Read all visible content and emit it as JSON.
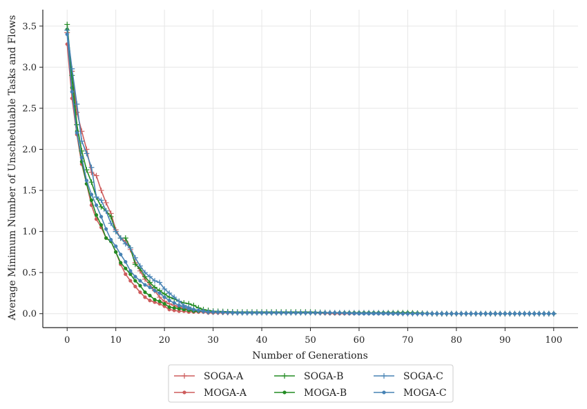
{
  "chart_data": {
    "type": "line",
    "title": "",
    "xlabel": "Number of Generations",
    "ylabel": "Average Minimum Number of Unschedulable Tasks and Flows",
    "xlim": [
      -5,
      105
    ],
    "ylim": [
      -0.17,
      3.7
    ],
    "xticks": [
      0,
      10,
      20,
      30,
      40,
      50,
      60,
      70,
      80,
      90,
      100
    ],
    "yticks": [
      0.0,
      0.5,
      1.0,
      1.5,
      2.0,
      2.5,
      3.0,
      3.5
    ],
    "ytick_labels": [
      "0.0",
      "0.5",
      "1.0",
      "1.5",
      "2.0",
      "2.5",
      "3.0",
      "3.5"
    ],
    "grid": true,
    "legend": {
      "placement": "bottom-center",
      "columns": 3
    },
    "series": [
      {
        "name": "SOGA-A",
        "color": "#cd5c5c",
        "marker": "plus",
        "x": [
          0,
          1,
          2,
          3,
          4,
          5,
          6,
          7,
          8,
          9,
          10,
          11,
          12,
          13,
          14,
          15,
          16,
          17,
          18,
          19,
          20,
          21,
          22,
          23,
          24,
          25,
          26,
          27,
          28,
          29,
          30,
          35,
          40,
          45,
          50,
          55,
          60,
          65,
          70,
          75,
          80,
          85,
          90,
          95,
          100
        ],
        "y": [
          3.42,
          2.95,
          2.45,
          2.22,
          2.0,
          1.72,
          1.68,
          1.5,
          1.35,
          1.22,
          1.02,
          0.92,
          0.88,
          0.78,
          0.62,
          0.52,
          0.42,
          0.35,
          0.28,
          0.2,
          0.15,
          0.12,
          0.1,
          0.08,
          0.06,
          0.05,
          0.04,
          0.03,
          0.03,
          0.02,
          0.02,
          0.01,
          0.01,
          0.01,
          0.01,
          0.01,
          0.01,
          0.01,
          0.01,
          0.0,
          0.0,
          0.0,
          0.0,
          0.0,
          0.0
        ]
      },
      {
        "name": "MOGA-A",
        "color": "#cd5c5c",
        "marker": "dot",
        "x": [
          0,
          1,
          2,
          3,
          4,
          5,
          6,
          7,
          8,
          9,
          10,
          11,
          12,
          13,
          14,
          15,
          16,
          17,
          18,
          19,
          20,
          21,
          22,
          23,
          24,
          25,
          26,
          27,
          28,
          29,
          30,
          35,
          40,
          45,
          50,
          55,
          60,
          65,
          70,
          75,
          80,
          85,
          90,
          95,
          100
        ],
        "y": [
          3.28,
          2.62,
          2.18,
          1.82,
          1.58,
          1.32,
          1.15,
          1.05,
          0.92,
          0.88,
          0.75,
          0.6,
          0.48,
          0.4,
          0.33,
          0.26,
          0.2,
          0.16,
          0.14,
          0.12,
          0.09,
          0.05,
          0.04,
          0.03,
          0.03,
          0.02,
          0.02,
          0.02,
          0.02,
          0.01,
          0.01,
          0.01,
          0.01,
          0.01,
          0.01,
          0.0,
          0.0,
          0.0,
          0.0,
          0.0,
          0.0,
          0.0,
          0.0,
          0.0,
          0.0
        ]
      },
      {
        "name": "SOGA-B",
        "color": "#228b22",
        "marker": "plus",
        "x": [
          0,
          1,
          2,
          3,
          4,
          5,
          6,
          7,
          8,
          9,
          10,
          11,
          12,
          13,
          14,
          15,
          16,
          17,
          18,
          19,
          20,
          21,
          22,
          23,
          24,
          25,
          26,
          27,
          28,
          29,
          30,
          35,
          40,
          45,
          50,
          55,
          60,
          65,
          70,
          75,
          80,
          85,
          90,
          95,
          100
        ],
        "y": [
          3.52,
          2.9,
          2.3,
          1.98,
          1.75,
          1.6,
          1.42,
          1.3,
          1.25,
          1.18,
          1.0,
          0.92,
          0.92,
          0.8,
          0.6,
          0.55,
          0.45,
          0.38,
          0.32,
          0.28,
          0.24,
          0.2,
          0.18,
          0.15,
          0.13,
          0.12,
          0.1,
          0.07,
          0.05,
          0.04,
          0.03,
          0.02,
          0.02,
          0.02,
          0.02,
          0.01,
          0.01,
          0.01,
          0.01,
          0.0,
          0.0,
          0.0,
          0.0,
          0.0,
          0.0
        ]
      },
      {
        "name": "MOGA-B",
        "color": "#228b22",
        "marker": "dot",
        "x": [
          0,
          1,
          2,
          3,
          4,
          5,
          6,
          7,
          8,
          9,
          10,
          11,
          12,
          13,
          14,
          15,
          16,
          17,
          18,
          19,
          20,
          21,
          22,
          23,
          24,
          25,
          26,
          27,
          28,
          29,
          30,
          35,
          40,
          45,
          50,
          55,
          60,
          65,
          70,
          75,
          80,
          85,
          90,
          95,
          100
        ],
        "y": [
          3.46,
          2.75,
          2.22,
          1.85,
          1.58,
          1.38,
          1.2,
          1.08,
          0.92,
          0.88,
          0.75,
          0.62,
          0.55,
          0.48,
          0.4,
          0.34,
          0.26,
          0.22,
          0.17,
          0.15,
          0.12,
          0.08,
          0.07,
          0.06,
          0.05,
          0.04,
          0.03,
          0.03,
          0.03,
          0.02,
          0.02,
          0.01,
          0.01,
          0.01,
          0.01,
          0.01,
          0.01,
          0.01,
          0.01,
          0.0,
          0.0,
          0.0,
          0.0,
          0.0,
          0.0
        ]
      },
      {
        "name": "SOGA-C",
        "color": "#4682b4",
        "marker": "plus",
        "x": [
          0,
          1,
          2,
          3,
          4,
          5,
          6,
          7,
          8,
          9,
          10,
          11,
          12,
          13,
          14,
          15,
          16,
          17,
          18,
          19,
          20,
          21,
          22,
          23,
          24,
          25,
          26,
          27,
          28,
          29,
          30,
          35,
          40,
          45,
          50,
          55,
          60,
          65,
          70,
          75,
          80,
          85,
          90,
          95,
          100
        ],
        "y": [
          3.45,
          2.98,
          2.55,
          2.1,
          1.95,
          1.78,
          1.42,
          1.38,
          1.25,
          1.1,
          1.0,
          0.92,
          0.85,
          0.8,
          0.68,
          0.58,
          0.5,
          0.45,
          0.4,
          0.38,
          0.3,
          0.25,
          0.2,
          0.15,
          0.1,
          0.08,
          0.05,
          0.04,
          0.03,
          0.02,
          0.02,
          0.01,
          0.01,
          0.01,
          0.01,
          0.01,
          0.01,
          0.01,
          0.0,
          0.0,
          0.0,
          0.0,
          0.0,
          0.0,
          0.0
        ]
      },
      {
        "name": "MOGA-C",
        "color": "#4682b4",
        "marker": "dot",
        "x": [
          0,
          1,
          2,
          3,
          4,
          5,
          6,
          7,
          8,
          9,
          10,
          11,
          12,
          13,
          14,
          15,
          16,
          17,
          18,
          19,
          20,
          21,
          22,
          23,
          24,
          25,
          26,
          27,
          28,
          29,
          30,
          35,
          40,
          45,
          50,
          55,
          60,
          65,
          70,
          75,
          80,
          85,
          90,
          95,
          100
        ],
        "y": [
          3.4,
          2.7,
          2.2,
          1.9,
          1.62,
          1.45,
          1.32,
          1.18,
          1.03,
          0.9,
          0.82,
          0.72,
          0.63,
          0.52,
          0.45,
          0.4,
          0.35,
          0.32,
          0.28,
          0.25,
          0.2,
          0.16,
          0.13,
          0.1,
          0.08,
          0.06,
          0.05,
          0.04,
          0.03,
          0.02,
          0.02,
          0.01,
          0.01,
          0.01,
          0.01,
          0.01,
          0.0,
          0.0,
          0.0,
          0.0,
          0.0,
          0.0,
          0.0,
          0.0,
          0.0
        ]
      }
    ]
  }
}
